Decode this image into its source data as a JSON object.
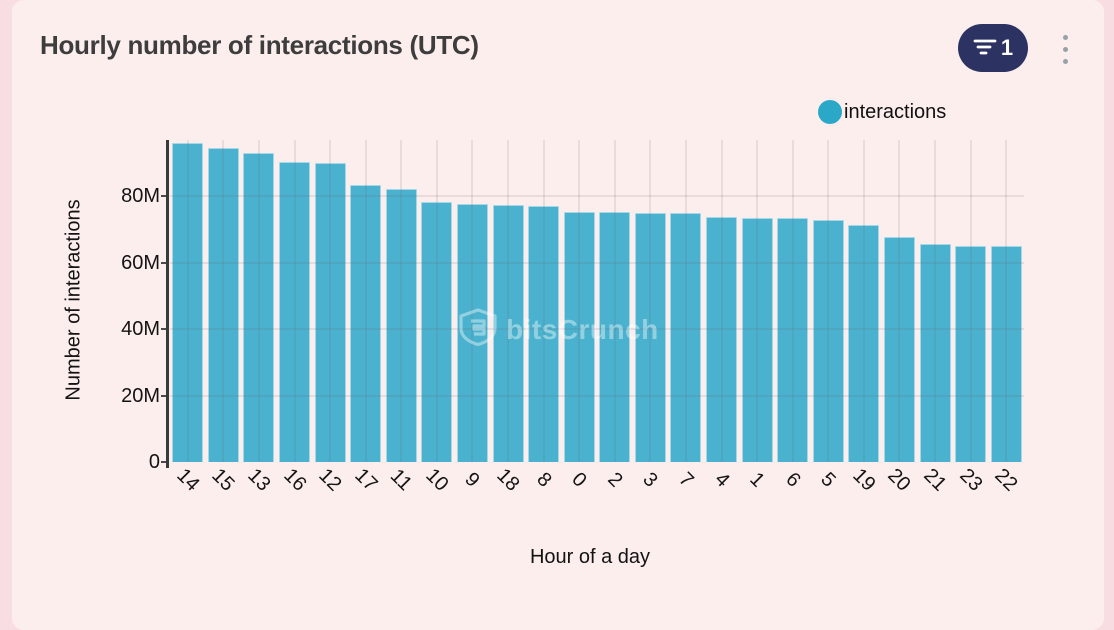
{
  "header": {
    "title": "Hourly number of interactions (UTC)",
    "filter_badge": "1",
    "filter_icon": "filter-funnel-lines-icon",
    "menu_icon": "kebab-menu-icon"
  },
  "legend": {
    "label": "interactions",
    "color": "#2ba7c8"
  },
  "watermark": {
    "text": "bitsCrunch",
    "icon": "shield-logo-icon"
  },
  "colors": {
    "page_background": "#f8dee2",
    "card_background": "#fdeeee",
    "bar_fill": "#57b4cf",
    "series_color": "#2ba7c8",
    "pill_background": "#2c3261",
    "title_text": "#3d3d3d",
    "gridline": "#d8cfd2"
  },
  "chart_data": {
    "type": "bar",
    "title": "Hourly number of interactions (UTC)",
    "xlabel": "Hour of a day",
    "ylabel": "Number of interactions",
    "categories": [
      "14",
      "15",
      "13",
      "16",
      "12",
      "17",
      "11",
      "10",
      "9",
      "18",
      "8",
      "0",
      "2",
      "3",
      "7",
      "4",
      "1",
      "6",
      "5",
      "19",
      "20",
      "21",
      "23",
      "22"
    ],
    "values": [
      96,
      94.5,
      93,
      90.5,
      90,
      83.5,
      82.3,
      78.2,
      77.8,
      77.5,
      77,
      75.4,
      75.2,
      75.1,
      74.9,
      73.9,
      73.6,
      73.4,
      72.9,
      71.4,
      67.7,
      65.6,
      65,
      65
    ],
    "unit": "M",
    "value_note": "values in millions of interactions, read from bar heights",
    "ylim": [
      0,
      97
    ],
    "yticks": [
      "0",
      "20M",
      "40M",
      "60M",
      "80M"
    ],
    "ytick_values": [
      0,
      20,
      40,
      60,
      80
    ],
    "grid": true,
    "x_label_rotation_deg": 45,
    "legend": [
      "interactions"
    ],
    "legend_position": "top-right",
    "sort_order": "descending by value"
  }
}
